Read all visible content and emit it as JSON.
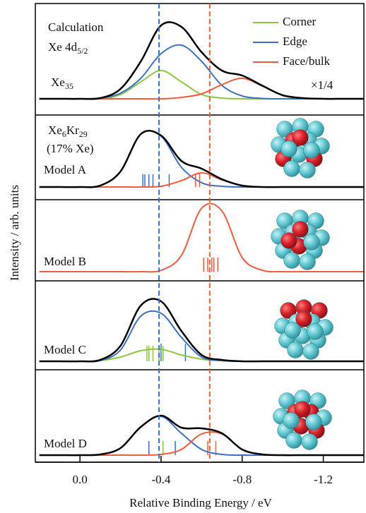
{
  "chart_data": [
    {
      "type": "line",
      "ylabel": "Intensity / arb. units",
      "legend": "upper right",
      "reference_lines": [
        {
          "value": -0.39,
          "color": "#3b6fc6"
        },
        {
          "value": -0.64,
          "color": "#f15a3a"
        }
      ],
      "x": [
        0.2,
        0.1,
        0,
        -0.1,
        -0.2,
        -0.3,
        -0.4,
        -0.5,
        -0.6,
        -0.7,
        -0.8,
        -0.9,
        -1.0,
        -1.1,
        -1.2,
        -1.3,
        -1.4
      ],
      "ylim": [
        -2.3,
        13.5
      ],
      "series": [
        {
          "name": "Corner",
          "color": "#8cc63f",
          "values": [
            0,
            0,
            0,
            0,
            0.6,
            2.4,
            4.0,
            2.4,
            0.6,
            0.1,
            0,
            0,
            0,
            0,
            0,
            0,
            0
          ]
        },
        {
          "name": "Edge",
          "color": "#3b6fc6",
          "values": [
            0,
            0,
            0,
            0.1,
            0.8,
            2.9,
            6.4,
            7.6,
            5.3,
            1.9,
            0.4,
            0.05,
            0,
            0,
            0,
            0,
            0
          ]
        },
        {
          "name": "Face/bulk",
          "color": "#f15a3a",
          "values": [
            0,
            0,
            0,
            0,
            0,
            0,
            0,
            0.2,
            0.7,
            2.0,
            2.9,
            1.8,
            0.5,
            0.1,
            0,
            0,
            0
          ]
        },
        {
          "color": "#000000",
          "values": [
            0,
            0,
            0,
            0.1,
            1.4,
            5.3,
            10.4,
            10.2,
            6.6,
            4.0,
            3.3,
            1.85,
            0.5,
            0.1,
            0,
            0,
            0
          ]
        }
      ],
      "annotations": [
        [
          {
            "text": "Calculation"
          }
        ],
        [
          {
            "text": "Xe 4d"
          },
          {
            "text": "5/2",
            "sub": true
          }
        ],
        [
          {
            "text": "Xe"
          },
          {
            "text": "35",
            "sub": true
          }
        ],
        [
          {
            "text": "×1/4"
          }
        ]
      ]
    },
    {
      "type": "line",
      "x": [
        0.2,
        0.1,
        0,
        -0.1,
        -0.2,
        -0.3,
        -0.4,
        -0.5,
        -0.6,
        -0.7,
        -0.8,
        -0.9,
        -1.0,
        -1.1,
        -1.2,
        -1.3,
        -1.4
      ],
      "ylim": [
        -1.8,
        10.2
      ],
      "series": [
        {
          "color": "#3b6fc6",
          "values": [
            0,
            0,
            0,
            0.2,
            2.2,
            7.5,
            7.2,
            2.8,
            0.6,
            0.1,
            0,
            0,
            0,
            0,
            0,
            0,
            0
          ]
        },
        {
          "color": "#f15a3a",
          "values": [
            0,
            0,
            0,
            0,
            0,
            0,
            0.1,
            0.9,
            2.0,
            1.0,
            0.2,
            0,
            0,
            0,
            0,
            0,
            0
          ]
        },
        {
          "color": "#000000",
          "values": [
            0,
            0,
            0,
            0.2,
            2.2,
            7.5,
            7.3,
            3.7,
            2.6,
            1.1,
            0.2,
            0,
            0,
            0,
            0,
            0,
            0
          ]
        }
      ],
      "sticks": [
        {
          "color": "#3b6fc6",
          "x": [
            -0.31,
            -0.32,
            -0.34,
            -0.36,
            -0.44
          ],
          "values": [
            1.8,
            1.8,
            1.8,
            1.8,
            1.8
          ]
        },
        {
          "color": "#f15a3a",
          "x": [
            -0.57,
            -0.59
          ],
          "values": [
            1.9,
            1.9
          ]
        }
      ],
      "annotations": [
        [
          {
            "text": "Xe"
          },
          {
            "text": "6",
            "sub": true
          },
          {
            "text": "Kr"
          },
          {
            "text": "29",
            "sub": true
          }
        ],
        [
          {
            "text": "(17% Xe)"
          }
        ],
        [
          {
            "text": "Model A"
          }
        ]
      ]
    },
    {
      "type": "line",
      "x": [
        0.2,
        0.1,
        0,
        -0.1,
        -0.2,
        -0.3,
        -0.4,
        -0.5,
        -0.6,
        -0.7,
        -0.8,
        -0.9,
        -1.0,
        -1.1,
        -1.2,
        -1.3,
        -1.4
      ],
      "ylim": [
        -1.3,
        10.2
      ],
      "series": [
        {
          "color": "#f15a3a",
          "values": [
            0,
            0,
            0,
            0,
            0,
            0,
            0.2,
            2.3,
            9.0,
            8.6,
            2.0,
            0.2,
            0,
            0,
            0,
            0,
            0
          ]
        }
      ],
      "sticks": [
        {
          "color": "#f15a3a",
          "x": [
            -0.61,
            -0.63,
            -0.65,
            -0.66,
            -0.68
          ],
          "values": [
            2.0,
            2.0,
            2.0,
            2.0,
            2.0
          ]
        }
      ],
      "annotations": [
        [
          {
            "text": "Model B"
          }
        ]
      ]
    },
    {
      "type": "line",
      "x": [
        0.2,
        0.1,
        0,
        -0.1,
        -0.2,
        -0.3,
        -0.4,
        -0.5,
        -0.6,
        -0.7,
        -0.8,
        -0.9,
        -1.0,
        -1.1,
        -1.2,
        -1.3,
        -1.4
      ],
      "ylim": [
        -1.2,
        11.4
      ],
      "series": [
        {
          "color": "#8cc63f",
          "values": [
            0,
            0,
            0,
            0.1,
            0.6,
            1.5,
            1.7,
            0.9,
            0.3,
            0.1,
            0,
            0,
            0,
            0,
            0,
            0,
            0
          ]
        },
        {
          "color": "#3b6fc6",
          "values": [
            0,
            0,
            0,
            0.1,
            1.6,
            6.4,
            6.8,
            3.4,
            0.6,
            0.1,
            0,
            0,
            0,
            0,
            0,
            0,
            0
          ]
        },
        {
          "color": "#000000",
          "values": [
            0,
            0,
            0,
            0.2,
            2.2,
            7.9,
            8.5,
            4.3,
            0.9,
            0.2,
            0,
            0,
            0,
            0,
            0,
            0,
            0
          ]
        }
      ],
      "sticks": [
        {
          "color": "#8cc63f",
          "x": [
            -0.33,
            -0.34,
            -0.36,
            -0.39,
            -0.41
          ],
          "values": [
            2.2,
            2.2,
            2.2,
            2.2,
            2.2
          ]
        },
        {
          "color": "#3b6fc6",
          "x": [
            -0.4,
            -0.52
          ],
          "values": [
            2.5,
            2.5
          ]
        }
      ],
      "annotations": [
        [
          {
            "text": "Model C"
          }
        ]
      ]
    },
    {
      "type": "line",
      "xlabel": "Relative Binding Energy / eV",
      "xlim": [
        0.22,
        -1.4
      ],
      "xticks": [
        {
          "value": 0,
          "label": "0.0"
        },
        -0.4,
        -0.8,
        -1.2
      ],
      "x": [
        0.2,
        0.1,
        0,
        -0.1,
        -0.2,
        -0.3,
        -0.4,
        -0.5,
        -0.6,
        -0.7,
        -0.8,
        -0.9,
        -1.0,
        -1.1,
        -1.2,
        -1.3,
        -1.4
      ],
      "ylim": [
        -1.0,
        12.1
      ],
      "series": [
        {
          "color": "#3b6fc6",
          "values": [
            0,
            0,
            0,
            0.1,
            1.0,
            4.0,
            5.5,
            3.1,
            0.8,
            0.1,
            0,
            0,
            0,
            0,
            0,
            0,
            0
          ]
        },
        {
          "color": "#f15a3a",
          "values": [
            0,
            0,
            0,
            0,
            0,
            0,
            0.1,
            0.8,
            3.0,
            3.0,
            0.8,
            0.1,
            0,
            0,
            0,
            0,
            0
          ]
        },
        {
          "color": "#000000",
          "values": [
            0,
            0,
            0,
            0.1,
            1.0,
            4.0,
            5.6,
            3.9,
            3.8,
            3.1,
            0.8,
            0.1,
            0,
            0,
            0,
            0,
            0
          ]
        }
      ],
      "sticks": [
        {
          "color": "#3b6fc6",
          "x": [
            -0.34,
            -0.47
          ],
          "values": [
            2.0,
            2.0
          ]
        },
        {
          "color": "#8cc63f",
          "x": [
            -0.41
          ],
          "values": [
            2.0
          ]
        },
        {
          "color": "#f15a3a",
          "x": [
            -0.63,
            -0.67
          ],
          "values": [
            2.0,
            2.0
          ]
        }
      ],
      "annotations": [
        [
          {
            "text": "Model D"
          }
        ]
      ]
    }
  ]
}
